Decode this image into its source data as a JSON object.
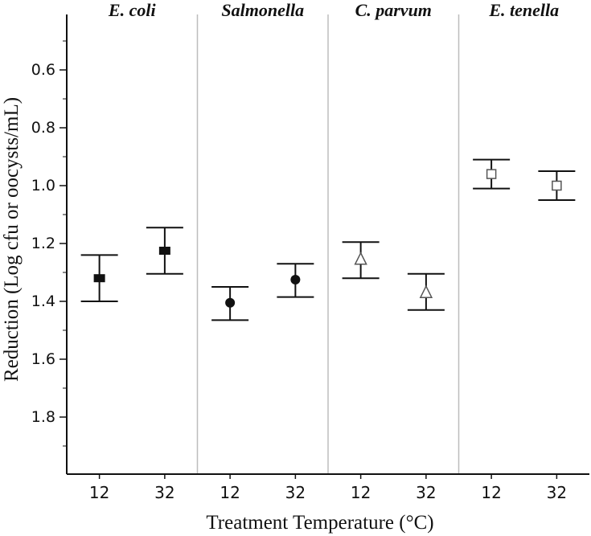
{
  "chart_data": {
    "type": "scatter",
    "subtype": "point-with-error-bars",
    "xlabel": "Treatment Temperature (°C)",
    "ylabel": "Reduction (Log cfu or oocysts/mL)",
    "y_axis_inverted": true,
    "ylim": [
      0.45,
      2.0
    ],
    "y_ticks": [
      "0.6",
      "0.8",
      "1.0",
      "1.2",
      "1.4",
      "1.6",
      "1.8"
    ],
    "y_tick_values": [
      0.6,
      0.8,
      1.0,
      1.2,
      1.4,
      1.6,
      1.8
    ],
    "x_categories": [
      "12",
      "32"
    ],
    "grid": false,
    "panels": [
      {
        "title": "E. coli",
        "marker": "filled-square",
        "points": [
          {
            "x": "12",
            "mean": 1.32,
            "lower": 1.24,
            "upper": 1.4
          },
          {
            "x": "32",
            "mean": 1.225,
            "lower": 1.145,
            "upper": 1.305
          }
        ]
      },
      {
        "title": "Salmonella",
        "marker": "filled-circle",
        "points": [
          {
            "x": "12",
            "mean": 1.405,
            "lower": 1.35,
            "upper": 1.465
          },
          {
            "x": "32",
            "mean": 1.325,
            "lower": 1.27,
            "upper": 1.385
          }
        ]
      },
      {
        "title": "C. parvum",
        "marker": "open-triangle",
        "points": [
          {
            "x": "12",
            "mean": 1.255,
            "lower": 1.195,
            "upper": 1.32
          },
          {
            "x": "32",
            "mean": 1.37,
            "lower": 1.305,
            "upper": 1.43
          }
        ]
      },
      {
        "title": "E. tenella",
        "marker": "open-square",
        "points": [
          {
            "x": "12",
            "mean": 0.96,
            "lower": 0.91,
            "upper": 1.01
          },
          {
            "x": "32",
            "mean": 1.0,
            "lower": 0.95,
            "upper": 1.05
          }
        ]
      }
    ]
  },
  "colors": {
    "ink": "#111111",
    "separator": "#bdbdbd",
    "open_marker_stroke": "#555555"
  }
}
